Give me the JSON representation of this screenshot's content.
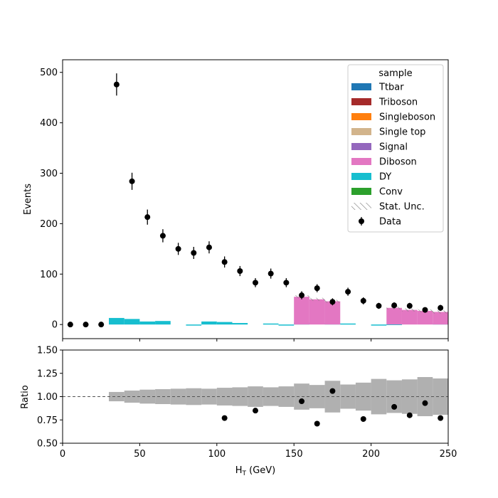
{
  "chart_data": [
    {
      "type": "bar",
      "subtype": "stacked-histogram-with-data",
      "xlim": [
        0,
        250
      ],
      "ylim": [
        -28,
        525
      ],
      "ylabel": "Events",
      "yticks": [
        0,
        100,
        200,
        300,
        400,
        500
      ],
      "bin_edges": [
        0,
        10,
        20,
        30,
        40,
        50,
        60,
        70,
        80,
        90,
        100,
        110,
        120,
        130,
        140,
        150,
        160,
        170,
        180,
        190,
        200,
        210,
        220,
        230,
        240,
        250
      ],
      "legend": {
        "title": "sample",
        "position": "upper-right",
        "entries": [
          {
            "label": "Ttbar",
            "color": "#1f77b4",
            "kind": "patch"
          },
          {
            "label": "Triboson",
            "color": "#a52a2a",
            "kind": "patch"
          },
          {
            "label": "Singleboson",
            "color": "#ff7f0e",
            "kind": "patch"
          },
          {
            "label": "Single top",
            "color": "#d2b48c",
            "kind": "patch"
          },
          {
            "label": "Signal",
            "color": "#9467bd",
            "kind": "patch"
          },
          {
            "label": "Diboson",
            "color": "#e377c2",
            "kind": "patch"
          },
          {
            "label": "DY",
            "color": "#17becf",
            "kind": "patch"
          },
          {
            "label": "Conv",
            "color": "#2ca02c",
            "kind": "patch"
          },
          {
            "label": "Stat. Unc.",
            "color": "#808080",
            "kind": "hatch"
          },
          {
            "label": "Data",
            "color": "#000000",
            "kind": "errorbar"
          }
        ]
      },
      "series": [
        {
          "name": "DY",
          "color": "#17becf",
          "values": [
            null,
            null,
            null,
            13,
            11,
            6,
            7,
            null,
            -1,
            6,
            5,
            3,
            null,
            2,
            -1,
            4,
            null,
            3,
            2,
            null,
            -1,
            1,
            null,
            null,
            3
          ]
        },
        {
          "name": "Diboson",
          "color": "#e377c2",
          "values": [
            null,
            null,
            null,
            null,
            null,
            null,
            null,
            null,
            null,
            null,
            null,
            null,
            null,
            null,
            null,
            55,
            50,
            46,
            null,
            null,
            null,
            33,
            29,
            27,
            25
          ]
        }
      ],
      "data_points": {
        "name": "Data",
        "x": [
          5,
          15,
          25,
          35,
          45,
          55,
          65,
          75,
          85,
          95,
          105,
          115,
          125,
          135,
          145,
          155,
          165,
          175,
          185,
          195,
          205,
          215,
          225,
          235,
          245
        ],
        "y": [
          0,
          0,
          0,
          476,
          284,
          213,
          176,
          150,
          142,
          153,
          124,
          106,
          83,
          101,
          83,
          58,
          72,
          45,
          65,
          47,
          37,
          38,
          37,
          29,
          33
        ],
        "err": [
          0,
          0,
          0,
          22,
          17,
          15,
          13,
          12,
          12,
          12,
          11,
          10,
          9,
          10,
          9,
          8,
          8,
          7,
          8,
          7,
          6,
          6,
          6,
          5,
          6
        ]
      }
    },
    {
      "type": "scatter",
      "subtype": "ratio-panel",
      "xlim": [
        0,
        250
      ],
      "ylim": [
        0.5,
        1.5
      ],
      "xlabel": "H",
      "xlabel_sub": "T",
      "xlabel_unit": " (GeV)",
      "ylabel": "Ratio",
      "xticks": [
        0,
        50,
        100,
        150,
        200,
        250
      ],
      "yticks": [
        "0.50",
        "0.75",
        "1.00",
        "1.25",
        "1.50"
      ],
      "reference_line": 1.0,
      "uncertainty_band": {
        "color": "#b0b0b0",
        "bins_x0": [
          30,
          40,
          50,
          60,
          70,
          80,
          90,
          100,
          110,
          120,
          130,
          140,
          150,
          160,
          170,
          180,
          190,
          200,
          210,
          220,
          230,
          240
        ],
        "half_width": [
          0.05,
          0.065,
          0.075,
          0.08,
          0.085,
          0.09,
          0.085,
          0.095,
          0.1,
          0.11,
          0.1,
          0.11,
          0.14,
          0.125,
          0.17,
          0.13,
          0.15,
          0.19,
          0.175,
          0.185,
          0.21,
          0.195
        ]
      },
      "points": {
        "x": [
          105,
          125,
          155,
          165,
          175,
          195,
          215,
          225,
          235,
          245
        ],
        "y": [
          0.77,
          0.85,
          0.95,
          0.71,
          1.06,
          0.76,
          0.89,
          0.8,
          0.93,
          0.77
        ]
      }
    }
  ]
}
